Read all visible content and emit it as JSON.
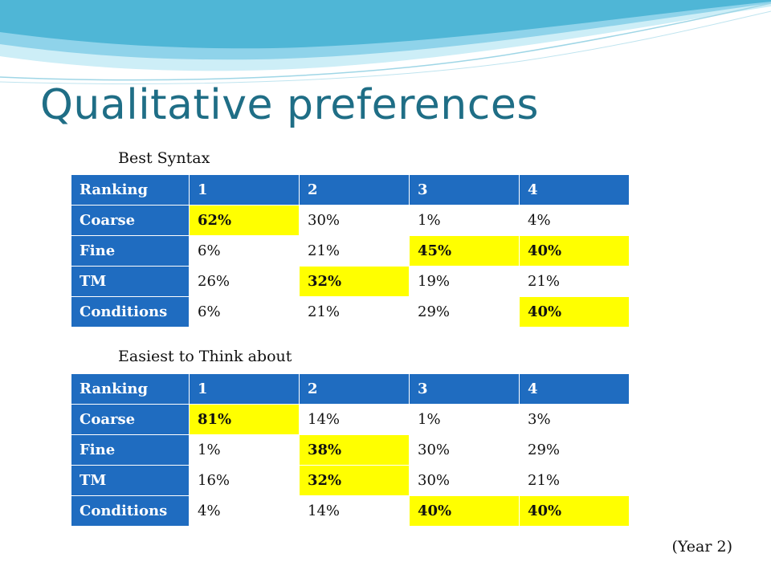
{
  "slide": {
    "title": "Qualitative preferences",
    "footnote": "(Year 2)"
  },
  "colors": {
    "title": "#1f6e86",
    "header_fill": "#1f6cc0",
    "highlight": "#ffff00",
    "swoosh": "#4fb6d6"
  },
  "tables": [
    {
      "caption": "Best Syntax",
      "header": [
        "Ranking",
        "1",
        "2",
        "3",
        "4"
      ],
      "rows": [
        {
          "label": "Coarse",
          "values": [
            "62%",
            "30%",
            "1%",
            "4%"
          ],
          "highlight": [
            true,
            false,
            false,
            false
          ]
        },
        {
          "label": "Fine",
          "values": [
            "6%",
            "21%",
            "45%",
            "40%"
          ],
          "highlight": [
            false,
            false,
            true,
            true
          ]
        },
        {
          "label": "TM",
          "values": [
            "26%",
            "32%",
            "19%",
            "21%"
          ],
          "highlight": [
            false,
            true,
            false,
            false
          ]
        },
        {
          "label": "Conditions",
          "values": [
            "6%",
            "21%",
            "29%",
            "40%"
          ],
          "highlight": [
            false,
            false,
            false,
            true
          ]
        }
      ]
    },
    {
      "caption": "Easiest to Think about",
      "header": [
        "Ranking",
        "1",
        "2",
        "3",
        "4"
      ],
      "rows": [
        {
          "label": "Coarse",
          "values": [
            "81%",
            "14%",
            "1%",
            "3%"
          ],
          "highlight": [
            true,
            false,
            false,
            false
          ]
        },
        {
          "label": "Fine",
          "values": [
            "1%",
            "38%",
            "30%",
            "29%"
          ],
          "highlight": [
            false,
            true,
            false,
            false
          ]
        },
        {
          "label": "TM",
          "values": [
            "16%",
            "32%",
            "30%",
            "21%"
          ],
          "highlight": [
            false,
            true,
            false,
            false
          ]
        },
        {
          "label": "Conditions",
          "values": [
            "4%",
            "14%",
            "40%",
            "40%"
          ],
          "highlight": [
            false,
            false,
            true,
            true
          ]
        }
      ]
    }
  ]
}
